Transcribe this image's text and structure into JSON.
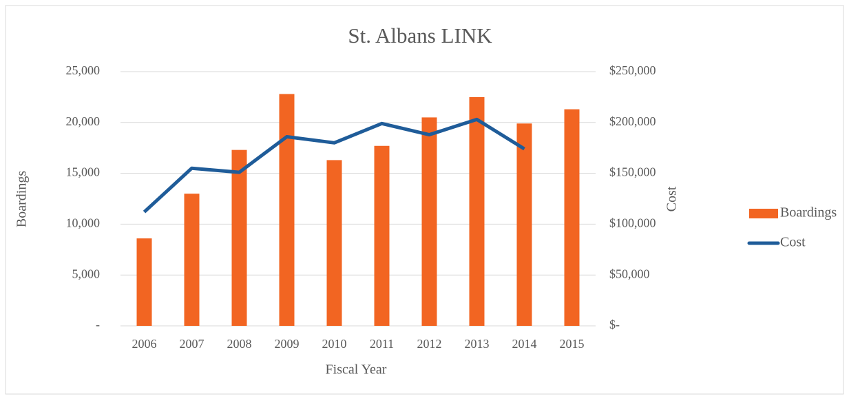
{
  "chart_data": {
    "type": "bar",
    "title": "St. Albans LINK",
    "x_label": "Fiscal Year",
    "y_label": "Boardings",
    "y2_label": "Cost",
    "categories": [
      "2006",
      "2007",
      "2008",
      "2009",
      "2010",
      "2011",
      "2012",
      "2013",
      "2014",
      "2015"
    ],
    "series": [
      {
        "name": "Boardings",
        "type": "bar",
        "color": "#f26522",
        "values": [
          8600,
          13000,
          17300,
          22800,
          16300,
          17700,
          20500,
          22500,
          19900,
          21300
        ]
      },
      {
        "name": "Cost",
        "type": "line",
        "axis": "y2",
        "color": "#1f5c99",
        "values": [
          112000,
          155000,
          151000,
          186000,
          180000,
          199000,
          188000,
          203000,
          174000,
          null
        ]
      }
    ],
    "ylim": [
      0,
      25000
    ],
    "yticks": [
      {
        "value": 0,
        "label": "-"
      },
      {
        "value": 5000,
        "label": "5,000"
      },
      {
        "value": 10000,
        "label": "10,000"
      },
      {
        "value": 15000,
        "label": "15,000"
      },
      {
        "value": 20000,
        "label": "20,000"
      },
      {
        "value": 25000,
        "label": "25,000"
      }
    ],
    "y2lim": [
      0,
      250000
    ],
    "y2ticks": [
      {
        "value": 0,
        "label": "$-"
      },
      {
        "value": 50000,
        "label": "$50,000"
      },
      {
        "value": 100000,
        "label": "$100,000"
      },
      {
        "value": 150000,
        "label": "$150,000"
      },
      {
        "value": 200000,
        "label": "$200,000"
      },
      {
        "value": 250000,
        "label": "$250,000"
      }
    ],
    "grid": true,
    "legend": "right"
  }
}
